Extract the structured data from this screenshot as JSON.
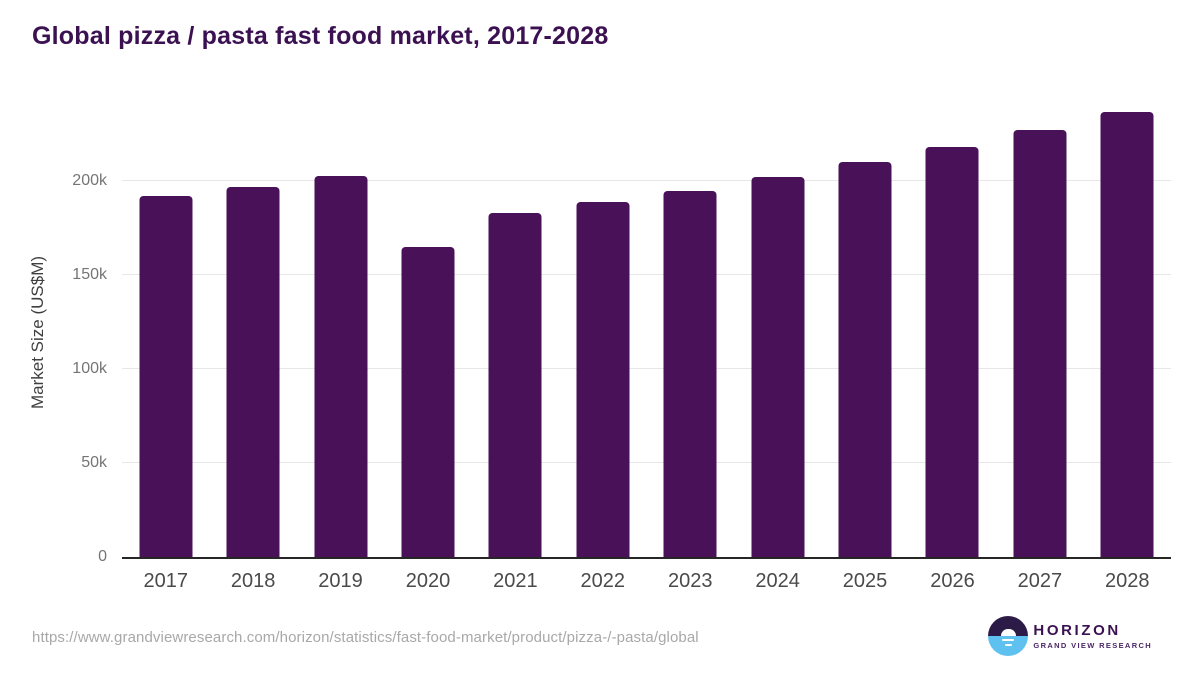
{
  "chart_data": {
    "type": "bar",
    "title": "Global pizza / pasta fast food market, 2017-2028",
    "xlabel": "",
    "ylabel": "Market Size (US$M)",
    "categories": [
      "2017",
      "2018",
      "2019",
      "2020",
      "2021",
      "2022",
      "2023",
      "2024",
      "2025",
      "2026",
      "2027",
      "2028"
    ],
    "values": [
      192000,
      197000,
      203000,
      165000,
      183000,
      189000,
      195000,
      202000,
      210000,
      218000,
      227000,
      237000
    ],
    "ylim": [
      0,
      240000
    ],
    "yticks": [
      {
        "value": 0,
        "label": "0"
      },
      {
        "value": 50000,
        "label": "50k"
      },
      {
        "value": 100000,
        "label": "100k"
      },
      {
        "value": 150000,
        "label": "150k"
      },
      {
        "value": 200000,
        "label": "200k"
      }
    ],
    "grid": "horizontal",
    "legend_position": "none",
    "bar_color": "#481158"
  },
  "footer": {
    "source_url": "https://www.grandviewresearch.com/horizon/statistics/fast-food-market/product/pizza-/-pasta/global",
    "logo_name": "HORIZON",
    "logo_subtitle": "GRAND VIEW RESEARCH"
  },
  "colors": {
    "title_text": "#3b1151",
    "bar": "#481158",
    "axis_line": "#262626",
    "gridline": "#e7e7e7",
    "ytick_text": "#757575",
    "xtick_text": "#4a4a4a",
    "url_text": "#a8a8a8",
    "logo_purple": "#2d1b47",
    "logo_blue": "#5ec1ef"
  }
}
